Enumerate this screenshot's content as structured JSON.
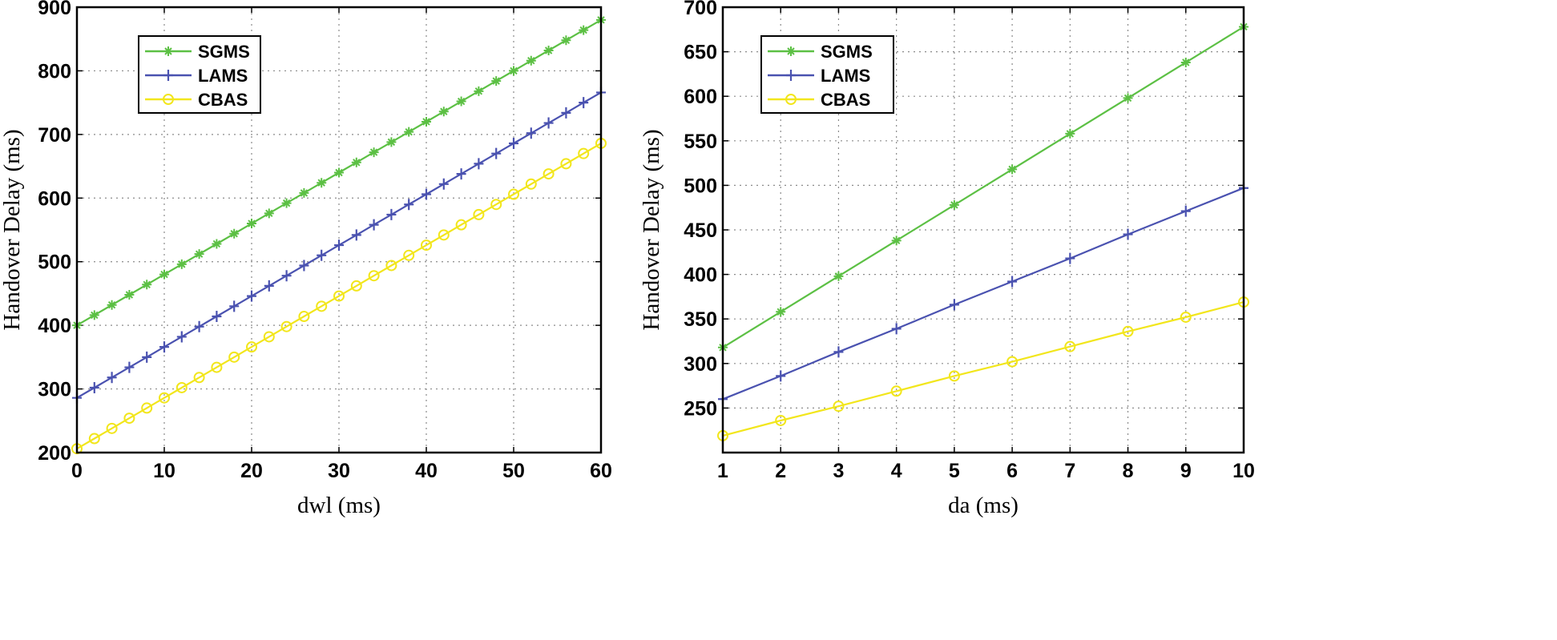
{
  "chart_data": [
    {
      "type": "line",
      "xlabel": "dwl (ms)",
      "ylabel": "Handover Delay (ms)",
      "xlim": [
        0,
        60
      ],
      "ylim": [
        200,
        900
      ],
      "xticks": [
        0,
        10,
        20,
        30,
        40,
        50,
        60
      ],
      "yticks": [
        200,
        300,
        400,
        500,
        600,
        700,
        800,
        900
      ],
      "grid": true,
      "legend": "top-left",
      "x": [
        0,
        2,
        4,
        6,
        8,
        10,
        12,
        14,
        16,
        18,
        20,
        22,
        24,
        26,
        28,
        30,
        32,
        34,
        36,
        38,
        40,
        42,
        44,
        46,
        48,
        50,
        52,
        54,
        56,
        58,
        60
      ],
      "series": [
        {
          "name": "SGMS",
          "color": "#5cc044",
          "marker": "star",
          "values": [
            400,
            416,
            432,
            448,
            464,
            480,
            496,
            512,
            528,
            544,
            560,
            576,
            592,
            608,
            624,
            640,
            656,
            672,
            688,
            704,
            720,
            736,
            752,
            768,
            784,
            800,
            816,
            832,
            848,
            864,
            880
          ]
        },
        {
          "name": "LAMS",
          "color": "#4a52b0",
          "marker": "plus",
          "values": [
            286,
            302,
            318,
            334,
            350,
            366,
            382,
            398,
            414,
            430,
            446,
            462,
            478,
            494,
            510,
            526,
            542,
            558,
            574,
            590,
            606,
            622,
            638,
            654,
            670,
            686,
            702,
            718,
            734,
            750,
            766
          ]
        },
        {
          "name": "CBAS",
          "color": "#f2e61c",
          "marker": "circle",
          "values": [
            206,
            222,
            238,
            254,
            270,
            286,
            302,
            318,
            334,
            350,
            366,
            382,
            398,
            414,
            430,
            446,
            462,
            478,
            494,
            510,
            526,
            542,
            558,
            574,
            590,
            606,
            622,
            638,
            654,
            670,
            686
          ]
        }
      ]
    },
    {
      "type": "line",
      "xlabel": "da (ms)",
      "ylabel": "Handover Delay (ms)",
      "xlim": [
        1,
        10
      ],
      "ylim": [
        200,
        700
      ],
      "xticks": [
        1,
        2,
        3,
        4,
        5,
        6,
        7,
        8,
        9,
        10
      ],
      "yticks": [
        250,
        300,
        350,
        400,
        450,
        500,
        550,
        600,
        650,
        700
      ],
      "grid": true,
      "legend": "top-left",
      "x": [
        1,
        2,
        3,
        4,
        5,
        6,
        7,
        8,
        9,
        10
      ],
      "series": [
        {
          "name": "SGMS",
          "color": "#5cc044",
          "marker": "star",
          "values": [
            318,
            358,
            398,
            438,
            478,
            518,
            558,
            598,
            638,
            678
          ]
        },
        {
          "name": "LAMS",
          "color": "#4a52b0",
          "marker": "plus",
          "values": [
            260,
            286,
            313,
            339,
            366,
            392,
            418,
            445,
            471,
            497
          ]
        },
        {
          "name": "CBAS",
          "color": "#f2e61c",
          "marker": "circle",
          "values": [
            219,
            236,
            252,
            269,
            286,
            302,
            319,
            336,
            352,
            369
          ]
        }
      ]
    }
  ]
}
